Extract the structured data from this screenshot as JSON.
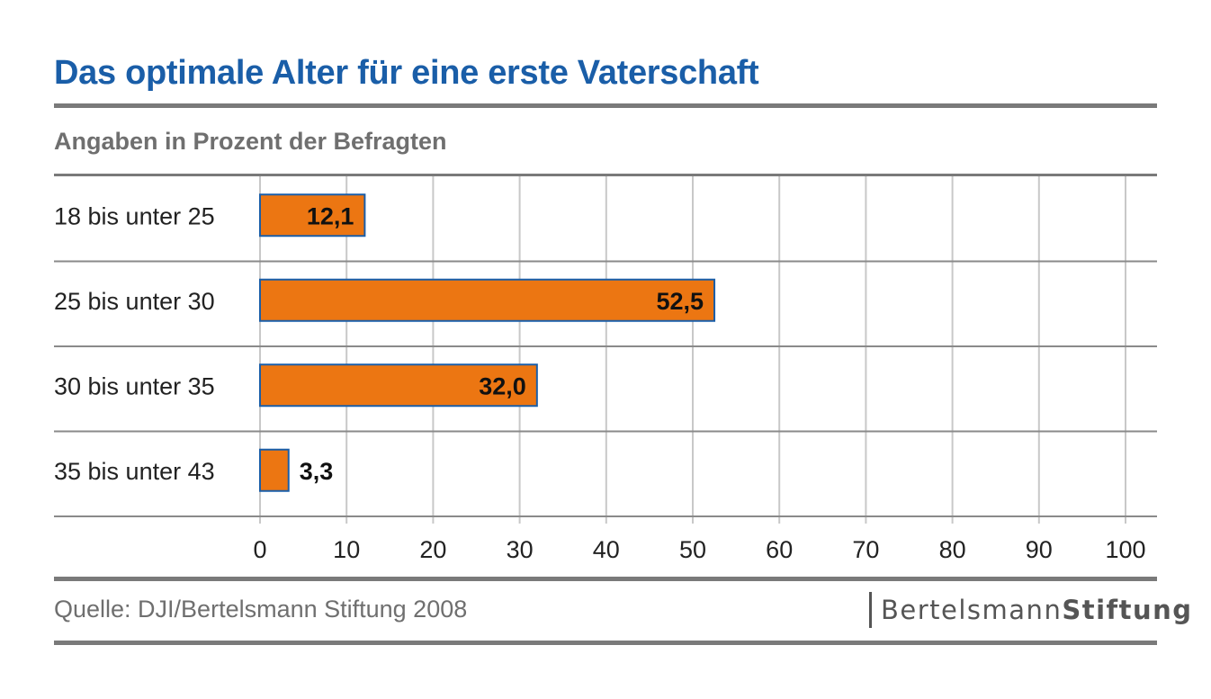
{
  "header": {
    "title": "Das optimale Alter für eine erste Vaterschaft",
    "subtitle": "Angaben in Prozent der Befragten"
  },
  "footer": {
    "source": "Quelle: DJI/Bertelsmann Stiftung 2008",
    "logo_part1": "Bertelsmann",
    "logo_part2": "Stiftung"
  },
  "colors": {
    "bar_fill": "#ec7612",
    "bar_stroke": "#1a5ea8",
    "title": "#1a5ea8"
  },
  "chart_data": {
    "type": "bar",
    "orientation": "horizontal",
    "title": "Das optimale Alter für eine erste Vaterschaft",
    "subtitle": "Angaben in Prozent der Befragten",
    "categories": [
      "18 bis unter 25",
      "25 bis unter 30",
      "30 bis unter 35",
      "35 bis unter 43"
    ],
    "values": [
      12.1,
      52.5,
      32.0,
      3.3
    ],
    "value_labels": [
      "12,1",
      "52,5",
      "32,0",
      "3,3"
    ],
    "xlim": [
      0,
      100
    ],
    "xticks": [
      0,
      10,
      20,
      30,
      40,
      50,
      60,
      70,
      80,
      90,
      100
    ],
    "grid": true,
    "legend": "none"
  }
}
